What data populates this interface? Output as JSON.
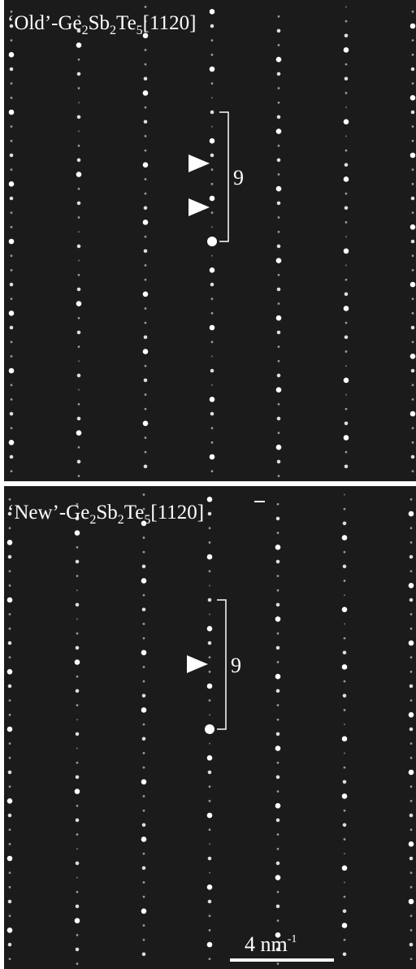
{
  "panels": [
    {
      "title": [
        "‘Old’-Ge",
        "2",
        "Sb",
        "2",
        "Te",
        "5",
        "[11",
        "2",
        "0]"
      ],
      "period_label": "9"
    },
    {
      "title": [
        "‘New’-Ge",
        "2",
        "Sb",
        "2",
        "Te",
        "5",
        "[11",
        "2",
        "0]"
      ],
      "period_label": "9"
    }
  ],
  "scale_bar": {
    "label": [
      "4 nm",
      "-1"
    ]
  }
}
